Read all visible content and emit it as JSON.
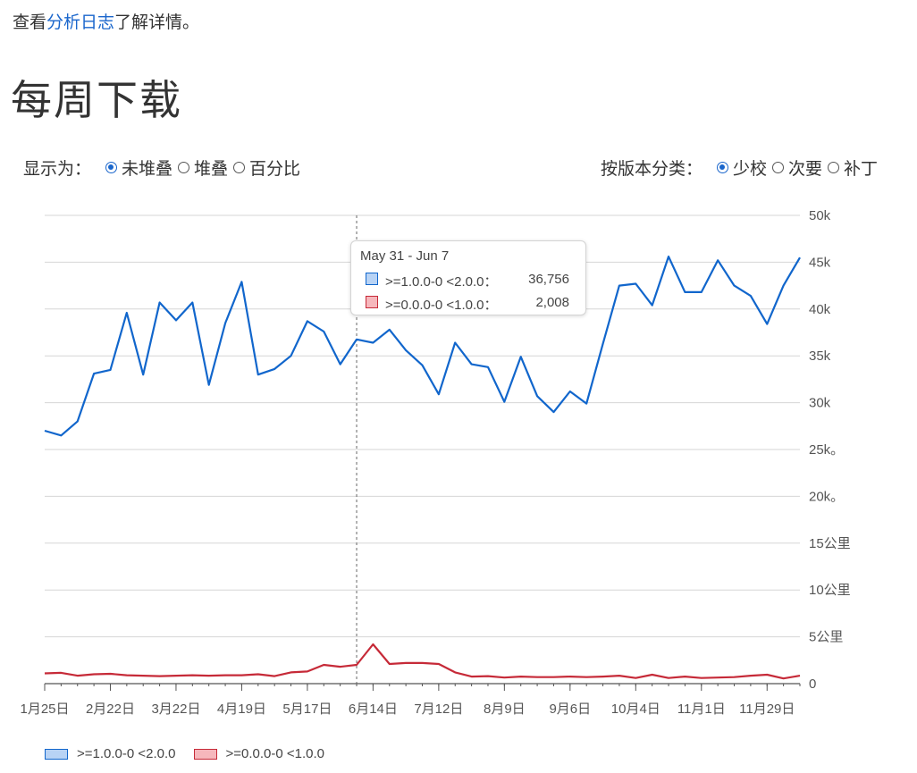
{
  "intro": {
    "prefix": "查看",
    "link": "分析日志",
    "suffix": "了解详情。"
  },
  "page_title": "每周下载",
  "display_controls": {
    "label": "显示为：",
    "options": [
      "未堆叠",
      "堆叠",
      "百分比"
    ],
    "selected": "未堆叠"
  },
  "category_controls": {
    "label": "按版本分类：",
    "options": [
      "少校",
      "次要",
      "补丁"
    ],
    "selected": "少校"
  },
  "tooltip": {
    "title": "May 31 - Jun 7",
    "rows": [
      {
        "series": ">=1.0.0-0 <2.0.0：",
        "value": "36,756"
      },
      {
        "series": ">=0.0.0-0 <1.0.0：",
        "value": "2,008"
      }
    ]
  },
  "colors": {
    "series1": "#1166cc",
    "series1_fill": "#b8d3f5",
    "series2": "#c62a38",
    "series2_fill": "#f6b7bc",
    "grid": "#d6d6d6",
    "axis": "#555555"
  },
  "chart_data": {
    "type": "line",
    "title": "每周下载",
    "y_tick_labels": [
      "0",
      "5公里",
      "10公里",
      "15公里",
      "20k。",
      "25k。",
      "30k",
      "35k",
      "40k",
      "45k",
      "50k"
    ],
    "y_ticks": [
      0,
      5000,
      10000,
      15000,
      20000,
      25000,
      30000,
      35000,
      40000,
      45000,
      50000
    ],
    "ylim": [
      0,
      50000
    ],
    "x_tick_labels": [
      "1月25日",
      "2月22日",
      "3月22日",
      "4月19日",
      "5月17日",
      "6月14日",
      "7月12日",
      "8月9日",
      "9月6日",
      "10月4日",
      "11月1日",
      "11月29日"
    ],
    "x_tick_indices": [
      0,
      4,
      8,
      12,
      16,
      20,
      24,
      28,
      32,
      36,
      40,
      44
    ],
    "num_points": 47,
    "highlight_index": 19,
    "grid": true,
    "legend_position": "bottom-left",
    "series": [
      {
        "name": ">=1.0.0-0 <2.0.0",
        "values": [
          27000,
          26500,
          28000,
          33100,
          33500,
          39600,
          33000,
          40700,
          38800,
          40700,
          31900,
          38500,
          42900,
          33000,
          33600,
          35000,
          38700,
          37600,
          34100,
          36756,
          36400,
          37800,
          35600,
          34000,
          30900,
          36400,
          34100,
          33800,
          30100,
          34900,
          30700,
          29000,
          31200,
          29900,
          36300,
          42500,
          42700,
          40400,
          45600,
          41800,
          41800,
          45200,
          42500,
          41400,
          38400,
          42500,
          45500
        ]
      },
      {
        "name": ">=0.0.0-0 <1.0.0",
        "values": [
          1100,
          1150,
          850,
          1000,
          1050,
          900,
          850,
          800,
          850,
          900,
          850,
          900,
          900,
          1000,
          800,
          1200,
          1300,
          2000,
          1800,
          2008,
          4200,
          2100,
          2200,
          2200,
          2100,
          1200,
          750,
          800,
          650,
          750,
          700,
          700,
          750,
          700,
          750,
          850,
          600,
          950,
          600,
          750,
          600,
          650,
          700,
          850,
          950,
          550,
          850
        ]
      }
    ]
  }
}
